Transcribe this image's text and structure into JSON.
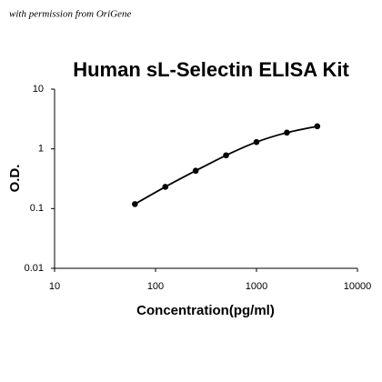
{
  "chart_data": {
    "type": "line",
    "title": "Human sL-Selectin ELISA Kit",
    "note": "with permission from OriGene",
    "xlabel": "Concentration(pg/ml)",
    "ylabel": "O.D.",
    "x": [
      62.5,
      125,
      250,
      500,
      1000,
      2000,
      4000
    ],
    "series": [
      {
        "color": "#000000",
        "values": [
          0.119,
          0.231,
          0.43,
          0.78,
          1.3,
          1.87,
          2.39
        ]
      }
    ],
    "xscale": "log",
    "yscale": "log",
    "xlim": [
      10,
      10000
    ],
    "ylim": [
      0.01,
      10
    ],
    "xticks": [
      10,
      100,
      1000,
      10000
    ],
    "yticks": [
      0.01,
      0.1,
      1,
      10
    ]
  }
}
